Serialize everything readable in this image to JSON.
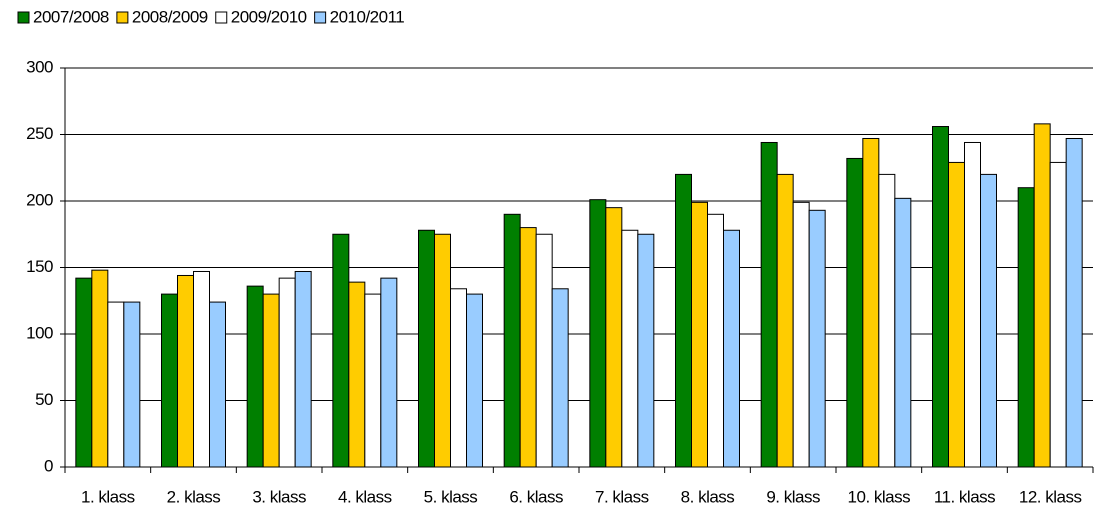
{
  "chart_data": {
    "type": "bar",
    "categories": [
      "1. klass",
      "2. klass",
      "3. klass",
      "4. klass",
      "5. klass",
      "6. klass",
      "7. klass",
      "8. klass",
      "9. klass",
      "10. klass",
      "11. klass",
      "12. klass"
    ],
    "series": [
      {
        "name": "2007/2008",
        "color": "#007f00",
        "values": [
          142,
          130,
          136,
          175,
          178,
          190,
          201,
          220,
          244,
          232,
          256,
          210
        ]
      },
      {
        "name": "2008/2009",
        "color": "#ffcc00",
        "values": [
          148,
          144,
          130,
          139,
          175,
          180,
          195,
          199,
          220,
          247,
          229,
          258
        ]
      },
      {
        "name": "2009/2010",
        "color": "#ffffff",
        "values": [
          124,
          147,
          142,
          130,
          134,
          175,
          178,
          190,
          199,
          220,
          244,
          229
        ]
      },
      {
        "name": "2010/2011",
        "color": "#99ccff",
        "values": [
          124,
          124,
          147,
          142,
          130,
          134,
          175,
          178,
          193,
          202,
          220,
          247
        ]
      }
    ],
    "ylim": [
      0,
      300
    ],
    "yticks": [
      0,
      50,
      100,
      150,
      200,
      250,
      300
    ],
    "grid": true,
    "legend": "top-left"
  }
}
